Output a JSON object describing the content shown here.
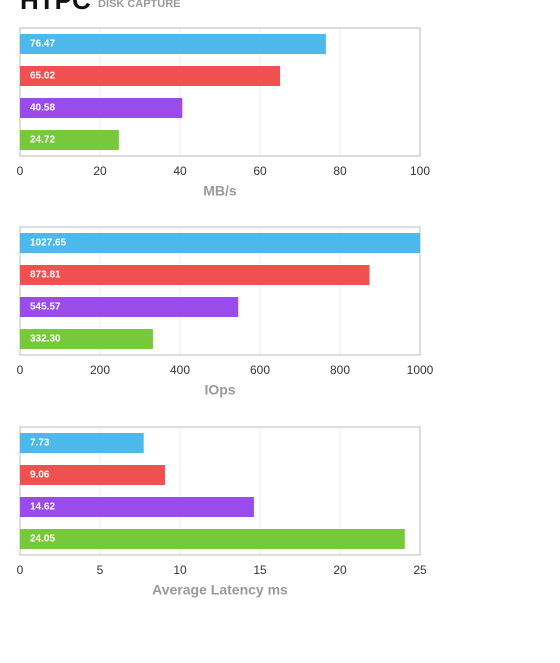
{
  "header": {
    "title": "HTPC",
    "subtitle": "DISK CAPTURE"
  },
  "chart_data": [
    {
      "type": "bar",
      "orientation": "horizontal",
      "values": [
        76.47,
        65.02,
        40.58,
        24.72
      ],
      "colors": [
        "#4cb9ea",
        "#f05050",
        "#9a4cea",
        "#78c83c"
      ],
      "xlim": [
        0,
        100
      ],
      "xticks": [
        0,
        20,
        40,
        60,
        80,
        100
      ],
      "xlabel": "MB/s",
      "grid": true
    },
    {
      "type": "bar",
      "orientation": "horizontal",
      "values": [
        1027.65,
        873.81,
        545.57,
        332.3
      ],
      "value_labels": [
        "1027.65",
        "873.81",
        "545.57",
        "332.30"
      ],
      "colors": [
        "#4cb9ea",
        "#f05050",
        "#9a4cea",
        "#78c83c"
      ],
      "xlim": [
        0,
        1000
      ],
      "xticks": [
        0,
        200,
        400,
        600,
        800,
        1000
      ],
      "xlabel": "IOps",
      "grid": true
    },
    {
      "type": "bar",
      "orientation": "horizontal",
      "values": [
        7.73,
        9.06,
        14.62,
        24.05
      ],
      "colors": [
        "#4cb9ea",
        "#f05050",
        "#9a4cea",
        "#78c83c"
      ],
      "xlim": [
        0,
        25
      ],
      "xticks": [
        0,
        5,
        10,
        15,
        20,
        25
      ],
      "xlabel": "Average Latency ms",
      "grid": true
    }
  ]
}
